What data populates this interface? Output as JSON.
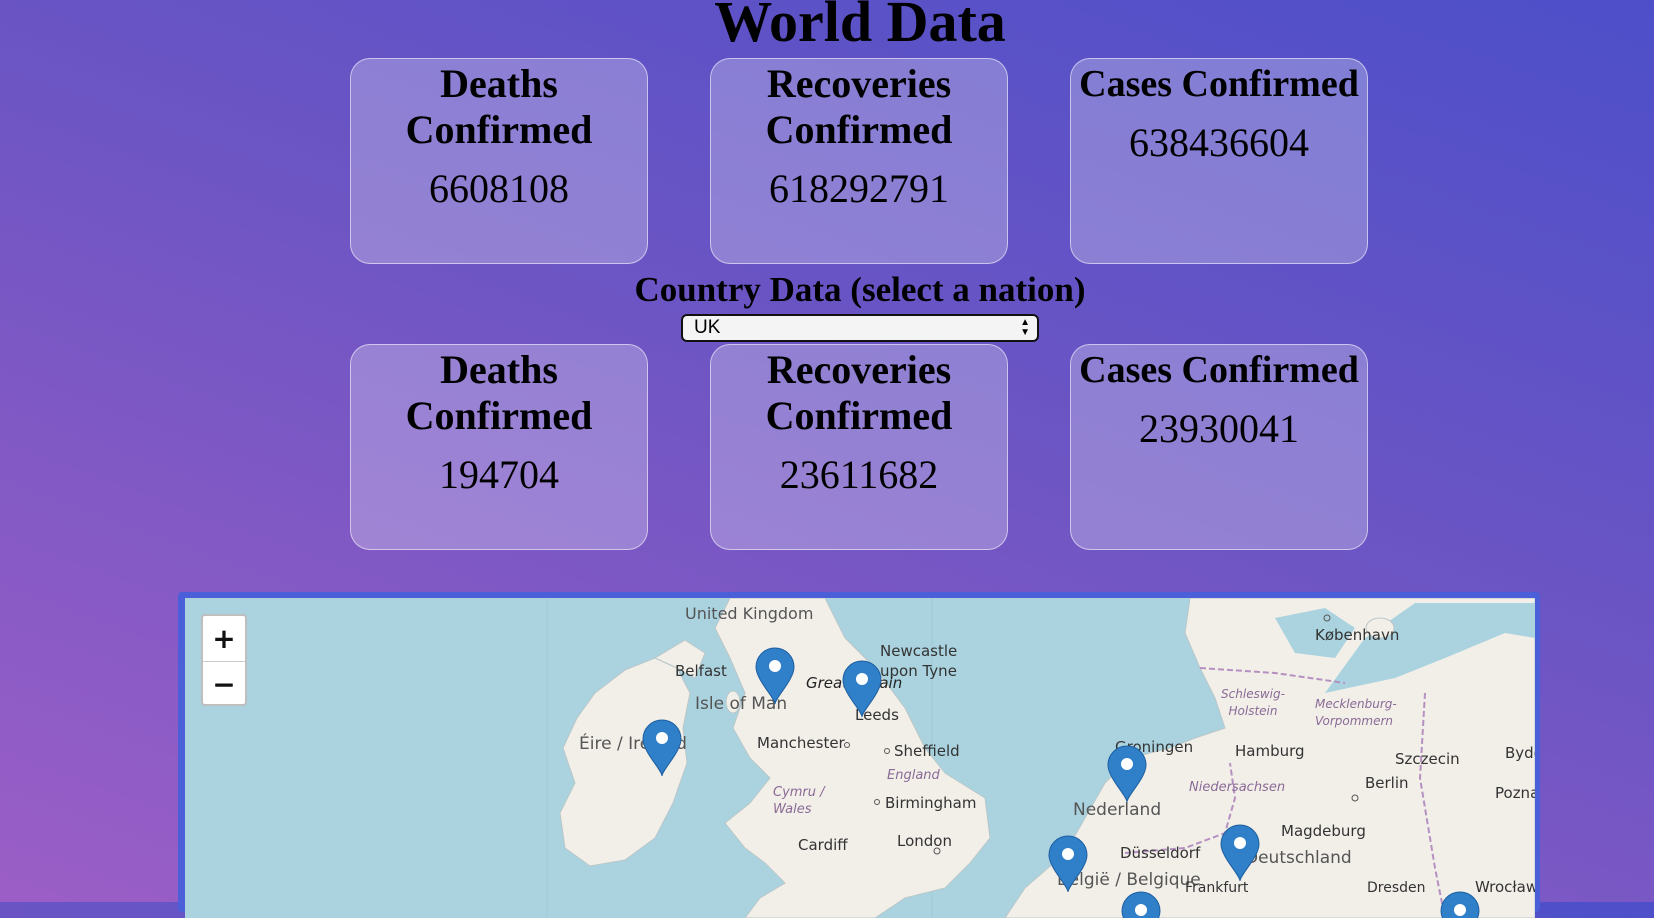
{
  "header": {
    "title": "World Data"
  },
  "world_stats": [
    {
      "label": "Deaths Confirmed",
      "value": "6608108"
    },
    {
      "label": "Recoveries Confirmed",
      "value": "618292791"
    },
    {
      "label": "Cases Confirmed",
      "value": "638436604"
    }
  ],
  "country_section": {
    "title": "Country Data (select a nation)",
    "selected_country": "UK"
  },
  "country_stats": [
    {
      "label": "Deaths Confirmed",
      "value": "194704"
    },
    {
      "label": "Recoveries Confirmed",
      "value": "23611682"
    },
    {
      "label": "Cases Confirmed",
      "value": "23930041"
    }
  ],
  "map": {
    "zoom_in": "+",
    "zoom_out": "−",
    "labels": {
      "uk": "United Kingdom",
      "newcastle": "Newcastle upon Tyne",
      "belfast": "Belfast",
      "great_britain": "Great Britain",
      "isle_of_man": "Isle of Man",
      "leeds": "Leeds",
      "eire": "Éire / Ireland",
      "manchester": "Manchester",
      "sheffield": "Sheffield",
      "england": "England",
      "cymru": "Cymru / Wales",
      "birmingham": "Birmingham",
      "cardiff": "Cardiff",
      "london": "London",
      "kobenhavn": "København",
      "schleswig": "Schleswig-Holstein",
      "mecklenburg": "Mecklenburg-Vorpommern",
      "groningen": "Groningen",
      "hamburg": "Hamburg",
      "szczecin": "Szczecin",
      "bydgoszcz": "Bydgoszcz",
      "niedersachsen": "Niedersachsen",
      "berlin": "Berlin",
      "poznan": "Poznań",
      "nederland": "Nederland",
      "magdeburg": "Magdeburg",
      "dusseldorf": "Düsseldorf",
      "deutschland": "Deutschland",
      "belgie": "België / Belgique",
      "frankfurt": "Frankfurt",
      "dresden": "Dresden",
      "wroclaw": "Wrocław"
    },
    "colors": {
      "water": "#aad3df",
      "land": "#f2efe9",
      "marker": "#2f7fc9"
    }
  }
}
